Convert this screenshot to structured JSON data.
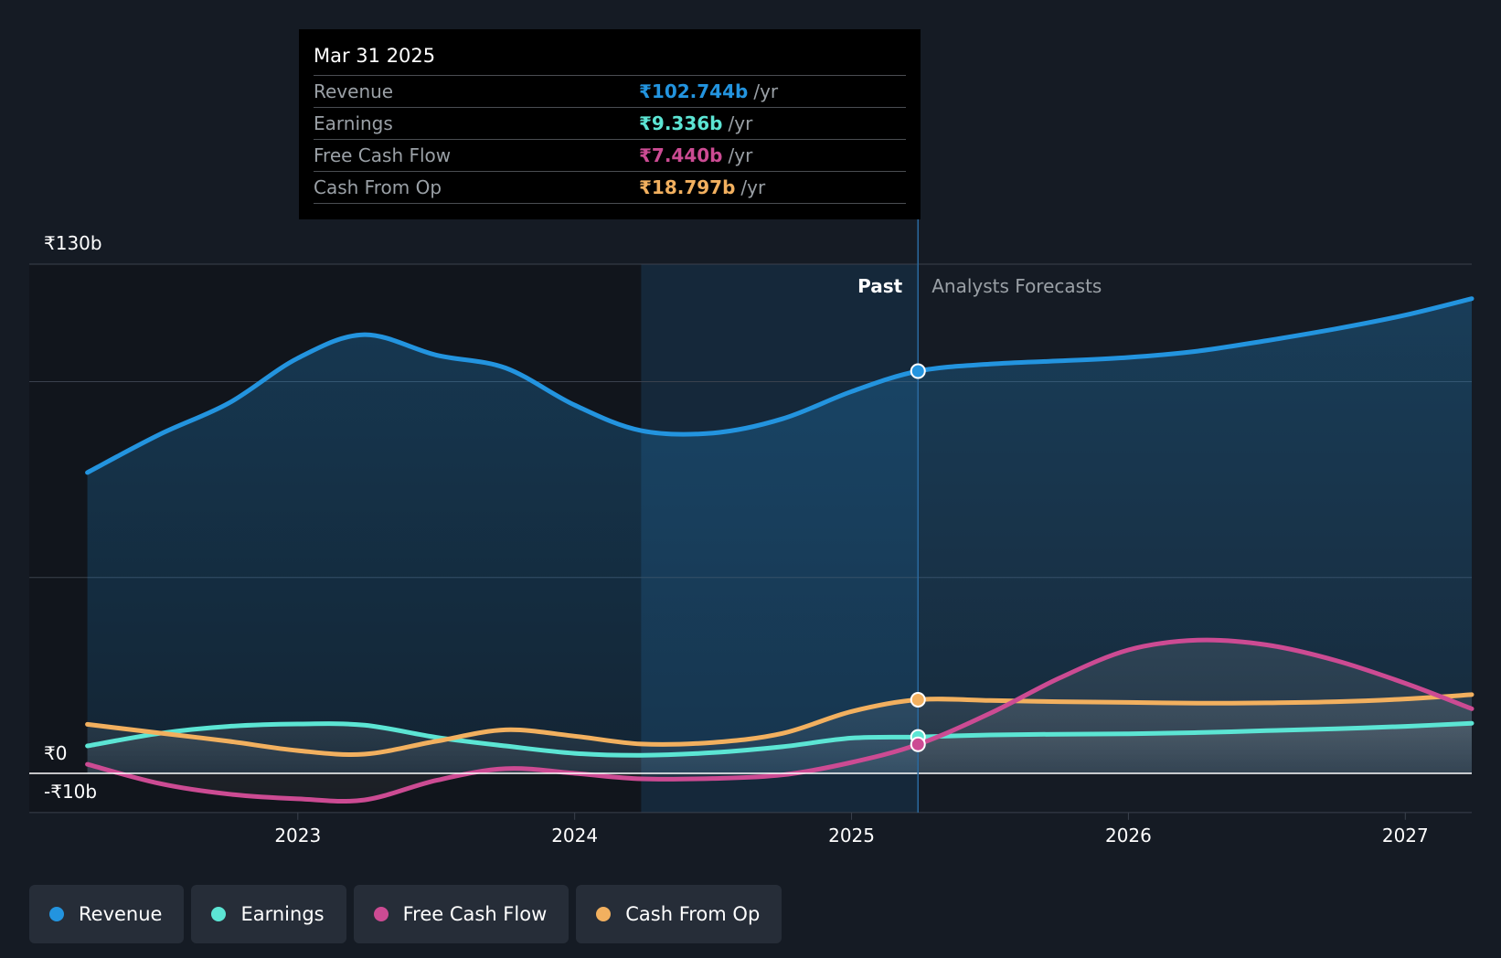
{
  "tooltip": {
    "date": "Mar 31 2025",
    "rows": [
      {
        "label": "Revenue",
        "value": "₹102.744b",
        "unit": "/yr",
        "color": "#2394df"
      },
      {
        "label": "Earnings",
        "value": "₹9.336b",
        "unit": "/yr",
        "color": "#5ce5d4"
      },
      {
        "label": "Free Cash Flow",
        "value": "₹7.440b",
        "unit": "/yr",
        "color": "#cc4b93"
      },
      {
        "label": "Cash From Op",
        "value": "₹18.797b",
        "unit": "/yr",
        "color": "#f2b05f"
      }
    ]
  },
  "legend": [
    {
      "label": "Revenue",
      "color": "#2394df"
    },
    {
      "label": "Earnings",
      "color": "#5ce5d4"
    },
    {
      "label": "Free Cash Flow",
      "color": "#cc4b93"
    },
    {
      "label": "Cash From Op",
      "color": "#f2b05f"
    }
  ],
  "chart_data": {
    "type": "area",
    "title": "",
    "xlabel": "",
    "ylabel": "",
    "ylim": [
      -10,
      130
    ],
    "xlim": [
      2022.03,
      2027.24
    ],
    "y_tick_labels": [
      {
        "value": 130,
        "label": "₹130b"
      },
      {
        "value": 0,
        "label": "₹0"
      },
      {
        "value": -10,
        "label": "-₹10b"
      }
    ],
    "gridlines": [
      130,
      100,
      50,
      0,
      -10
    ],
    "x_ticks": [
      {
        "value": 2023,
        "label": "2023"
      },
      {
        "value": 2024,
        "label": "2024"
      },
      {
        "value": 2025,
        "label": "2025"
      },
      {
        "value": 2026,
        "label": "2026"
      },
      {
        "value": 2027,
        "label": "2027"
      }
    ],
    "divider_x": 2025.24,
    "highlight_start_x": 2024.24,
    "past_label": "Past",
    "forecast_label": "Analysts Forecasts",
    "series": [
      {
        "name": "Revenue",
        "color": "#2394df",
        "points": [
          [
            2022.24,
            76.8
          ],
          [
            2022.5,
            86.5
          ],
          [
            2022.75,
            94.5
          ],
          [
            2023.0,
            106
          ],
          [
            2023.24,
            112
          ],
          [
            2023.5,
            106.8
          ],
          [
            2023.75,
            103.5
          ],
          [
            2024.0,
            94
          ],
          [
            2024.24,
            87.5
          ],
          [
            2024.5,
            86.9
          ],
          [
            2024.75,
            90.5
          ],
          [
            2025.0,
            97.5
          ],
          [
            2025.24,
            102.7
          ],
          [
            2025.5,
            104.5
          ],
          [
            2025.75,
            105.3
          ],
          [
            2026.0,
            106.2
          ],
          [
            2026.25,
            107.8
          ],
          [
            2026.5,
            110.5
          ],
          [
            2026.75,
            113.5
          ],
          [
            2027.0,
            117
          ],
          [
            2027.24,
            121.2
          ]
        ]
      },
      {
        "name": "Earnings",
        "color": "#5ce5d4",
        "points": [
          [
            2022.24,
            7
          ],
          [
            2022.5,
            10.2
          ],
          [
            2022.75,
            12
          ],
          [
            2023.0,
            12.6
          ],
          [
            2023.24,
            12.3
          ],
          [
            2023.5,
            9.2
          ],
          [
            2023.75,
            7
          ],
          [
            2024.0,
            5.1
          ],
          [
            2024.24,
            4.6
          ],
          [
            2024.5,
            5.3
          ],
          [
            2024.75,
            6.8
          ],
          [
            2025.0,
            9
          ],
          [
            2025.24,
            9.3
          ],
          [
            2025.5,
            9.8
          ],
          [
            2025.75,
            10
          ],
          [
            2026.0,
            10.1
          ],
          [
            2026.25,
            10.4
          ],
          [
            2026.5,
            10.9
          ],
          [
            2026.75,
            11.4
          ],
          [
            2027.0,
            12
          ],
          [
            2027.24,
            12.8
          ]
        ]
      },
      {
        "name": "Free Cash Flow",
        "color": "#cc4b93",
        "points": [
          [
            2022.24,
            2.3
          ],
          [
            2022.5,
            -2.6
          ],
          [
            2022.75,
            -5.3
          ],
          [
            2023.0,
            -6.5
          ],
          [
            2023.24,
            -6.8
          ],
          [
            2023.5,
            -1.8
          ],
          [
            2023.75,
            1.2
          ],
          [
            2024.0,
            0
          ],
          [
            2024.24,
            -1.4
          ],
          [
            2024.5,
            -1.3
          ],
          [
            2024.75,
            -0.4
          ],
          [
            2025.0,
            2.8
          ],
          [
            2025.24,
            7.4
          ],
          [
            2025.5,
            15.3
          ],
          [
            2025.75,
            24.3
          ],
          [
            2026.0,
            31.5
          ],
          [
            2026.25,
            34
          ],
          [
            2026.5,
            32.8
          ],
          [
            2026.75,
            28.8
          ],
          [
            2027.0,
            23
          ],
          [
            2027.24,
            16.5
          ]
        ]
      },
      {
        "name": "Cash From Op",
        "color": "#f2b05f",
        "points": [
          [
            2022.24,
            12.5
          ],
          [
            2022.5,
            10.3
          ],
          [
            2022.75,
            8.2
          ],
          [
            2023.0,
            5.8
          ],
          [
            2023.24,
            4.9
          ],
          [
            2023.5,
            8.2
          ],
          [
            2023.75,
            11.1
          ],
          [
            2024.0,
            9.5
          ],
          [
            2024.24,
            7.5
          ],
          [
            2024.5,
            7.9
          ],
          [
            2024.75,
            10.2
          ],
          [
            2025.0,
            15.8
          ],
          [
            2025.24,
            18.8
          ],
          [
            2025.5,
            18.6
          ],
          [
            2025.75,
            18.3
          ],
          [
            2026.0,
            18.1
          ],
          [
            2026.25,
            17.9
          ],
          [
            2026.5,
            18
          ],
          [
            2026.75,
            18.3
          ],
          [
            2027.0,
            19
          ],
          [
            2027.24,
            20.1
          ]
        ]
      }
    ],
    "markers": [
      {
        "series": "Revenue",
        "x": 2025.24,
        "y": 102.7
      },
      {
        "series": "Cash From Op",
        "x": 2025.24,
        "y": 18.8
      },
      {
        "series": "Earnings",
        "x": 2025.24,
        "y": 9.3
      },
      {
        "series": "Free Cash Flow",
        "x": 2025.24,
        "y": 7.4
      }
    ]
  }
}
